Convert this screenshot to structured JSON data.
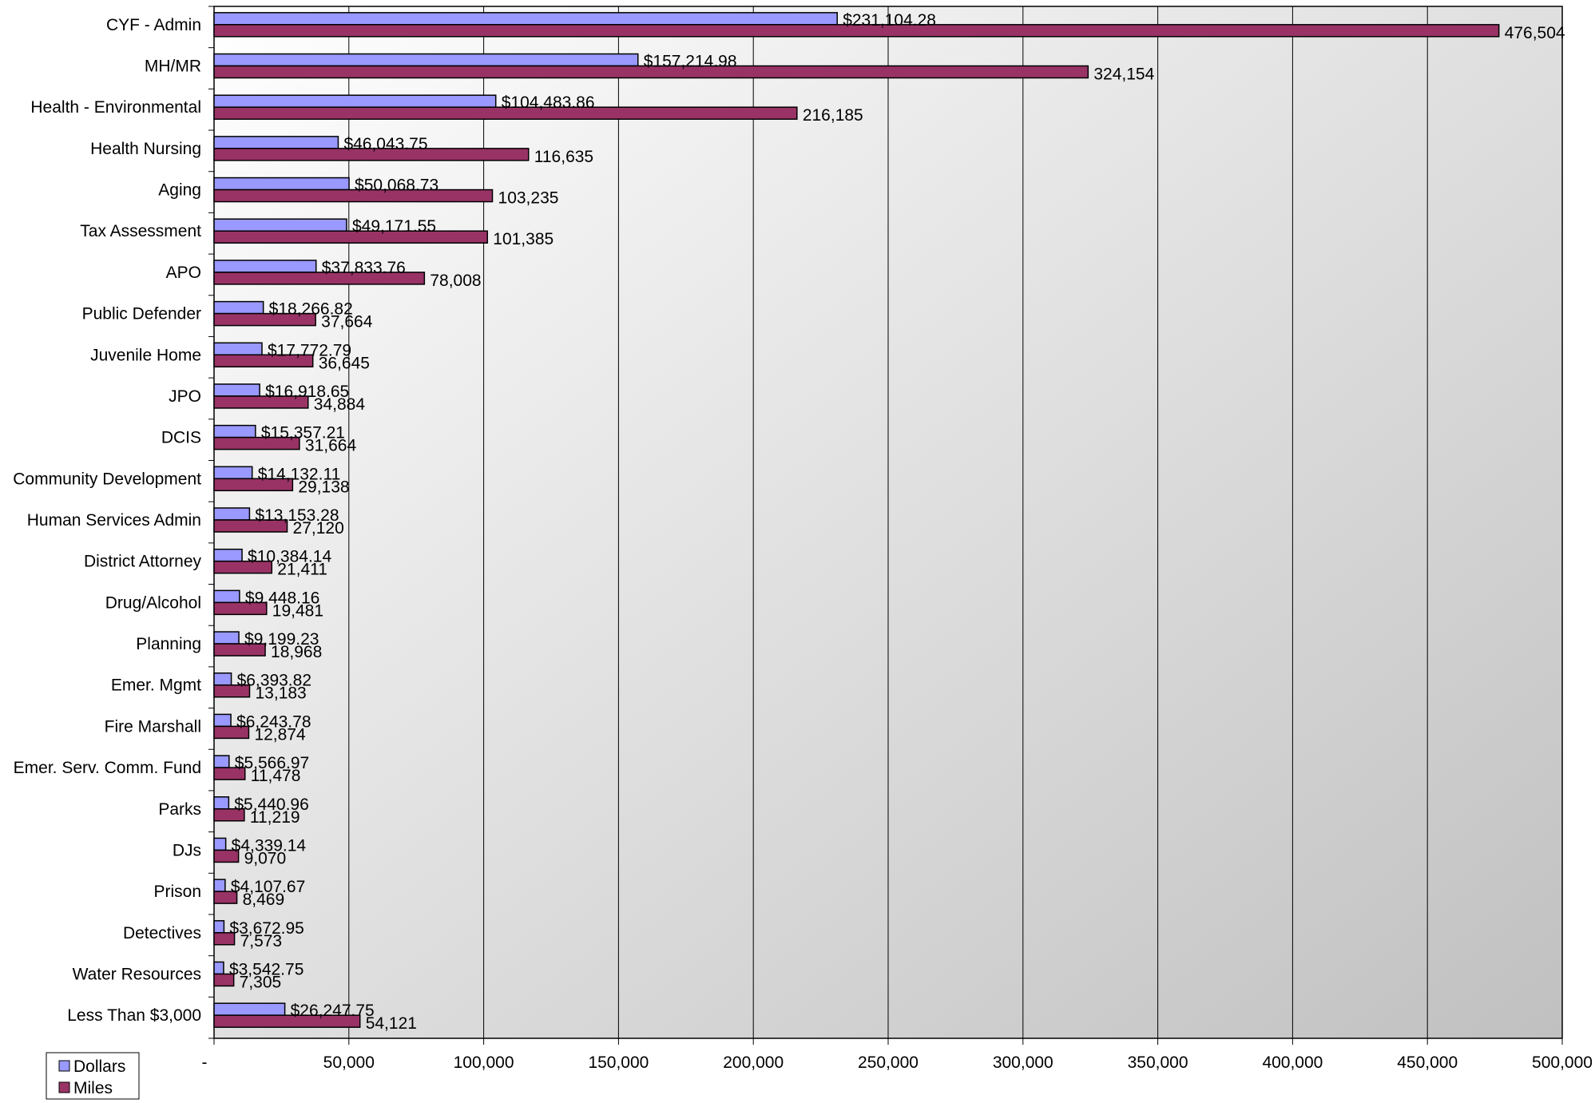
{
  "chart_data": {
    "type": "bar",
    "orientation": "horizontal",
    "title": "",
    "xlabel": "",
    "ylabel": "",
    "xlim": [
      0,
      500000
    ],
    "x_ticks": [
      0,
      50000,
      100000,
      150000,
      200000,
      250000,
      300000,
      350000,
      400000,
      450000,
      500000
    ],
    "x_tick_labels": [
      "-",
      "50,000",
      "100,000",
      "150,000",
      "200,000",
      "250,000",
      "300,000",
      "350,000",
      "400,000",
      "450,000",
      "500,000"
    ],
    "grid": true,
    "legend_position": "bottom-left",
    "categories": [
      "CYF - Admin",
      "MH/MR",
      "Health - Environmental",
      "Health Nursing",
      "Aging",
      "Tax Assessment",
      "APO",
      "Public Defender",
      "Juvenile Home",
      "JPO",
      "DCIS",
      "Community Development",
      "Human Services Admin",
      "District Attorney",
      "Drug/Alcohol",
      "Planning",
      "Emer. Mgmt",
      "Fire Marshall",
      "Emer. Serv. Comm. Fund",
      "Parks",
      "DJs",
      "Prison",
      "Detectives",
      "Water Resources",
      "Less Than $3,000"
    ],
    "series": [
      {
        "name": "Dollars",
        "color": "#9999ff",
        "values": [
          231104.28,
          157214.98,
          104483.86,
          46043.75,
          50068.73,
          49171.55,
          37833.76,
          18266.82,
          17772.79,
          16918.65,
          15357.21,
          14132.11,
          13153.28,
          10384.14,
          9448.16,
          9199.23,
          6393.82,
          6243.78,
          5566.97,
          5440.96,
          4339.14,
          4107.67,
          3672.95,
          3542.75,
          26247.75
        ],
        "labels": [
          "$231,104.28",
          "$157,214.98",
          "$104,483.86",
          "$46,043.75",
          "$50,068.73",
          "$49,171.55",
          "$37,833.76",
          "$18,266.82",
          "$17,772.79",
          "$16,918.65",
          "$15,357.21",
          "$14,132.11",
          "$13,153.28",
          "$10,384.14",
          "$9,448.16",
          "$9,199.23",
          "$6,393.82",
          "$6,243.78",
          "$5,566.97",
          "$5,440.96",
          "$4,339.14",
          "$4,107.67",
          "$3,672.95",
          "$3,542.75",
          "$26,247.75"
        ]
      },
      {
        "name": "Miles",
        "color": "#993366",
        "values": [
          476504,
          324154,
          216185,
          116635,
          103235,
          101385,
          78008,
          37664,
          36645,
          34884,
          31664,
          29138,
          27120,
          21411,
          19481,
          18968,
          13183,
          12874,
          11478,
          11219,
          9070,
          8469,
          7573,
          7305,
          54121
        ],
        "labels": [
          "476,504",
          "324,154",
          "216,185",
          "116,635",
          "103,235",
          "101,385",
          "78,008",
          "37,664",
          "36,645",
          "34,884",
          "31,664",
          "29,138",
          "27,120",
          "21,411",
          "19,481",
          "18,968",
          "13,183",
          "12,874",
          "11,478",
          "11,219",
          "9,070",
          "8,469",
          "7,573",
          "7,305",
          "54,121"
        ]
      }
    ]
  },
  "colors": {
    "plot_gradient_start": "#ffffff",
    "plot_gradient_end": "#c0c0c0",
    "grid": "#000000",
    "bar_outline": "#000000"
  }
}
